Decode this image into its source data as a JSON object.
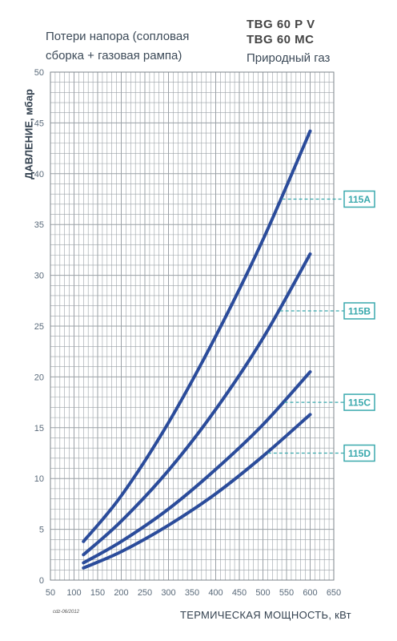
{
  "header": {
    "subtitle_line1": "Потери напора (сопловая",
    "subtitle_line2": "сборка + газовая рампа)",
    "model_line1": "TBG 60 P V",
    "model_line2": "TBG 60 MC",
    "fuel": "Природный газ",
    "date_code": "cdz-06/2012"
  },
  "colors": {
    "curve": "#2b4c9b",
    "label_box": "#3aa9ad",
    "grid": "#9aa0a6",
    "axis_text": "#5a6a7a"
  },
  "chart_data": {
    "type": "line",
    "xlabel": "ТЕРМИЧЕСКАЯ МОЩНОСТЬ, кВт",
    "ylabel": "ДАВЛЕНИЕ, мбар",
    "xlim": [
      50,
      650
    ],
    "ylim": [
      0,
      50
    ],
    "xticks": [
      50,
      100,
      150,
      200,
      250,
      300,
      350,
      400,
      450,
      500,
      550,
      600,
      650
    ],
    "yticks": [
      0,
      5,
      10,
      15,
      20,
      25,
      30,
      35,
      40,
      45,
      50
    ],
    "grid": true,
    "series": [
      {
        "name": "115A",
        "x": [
          120,
          200,
          300,
          400,
          500,
          600
        ],
        "values": [
          3.8,
          8.3,
          15.5,
          24.0,
          33.5,
          44.2
        ],
        "label_y": 37.5
      },
      {
        "name": "115B",
        "x": [
          120,
          200,
          300,
          400,
          500,
          600
        ],
        "values": [
          2.5,
          5.8,
          10.8,
          16.8,
          23.8,
          32.1
        ],
        "label_y": 26.5
      },
      {
        "name": "115C",
        "x": [
          120,
          200,
          300,
          400,
          500,
          600
        ],
        "values": [
          1.7,
          3.8,
          7.0,
          10.9,
          15.3,
          20.5
        ],
        "label_y": 17.5
      },
      {
        "name": "115D",
        "x": [
          120,
          200,
          300,
          400,
          500,
          600
        ],
        "values": [
          1.2,
          2.8,
          5.4,
          8.5,
          12.2,
          16.3
        ],
        "label_y": 12.5
      }
    ]
  }
}
